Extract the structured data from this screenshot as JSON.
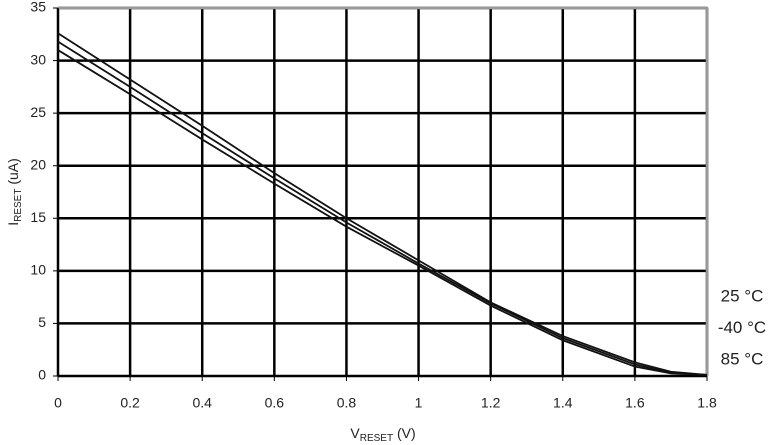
{
  "chart_data": {
    "type": "line",
    "ylabel": [
      "I",
      "RESET",
      " (uA)"
    ],
    "xlabel": [
      "V",
      "RESET",
      " (V)"
    ],
    "x": [
      0,
      0.2,
      0.4,
      0.6,
      0.8,
      1.0,
      1.2,
      1.4,
      1.6,
      1.7,
      1.8
    ],
    "series": [
      {
        "name": "25 °C",
        "color": "#111111",
        "values": [
          32.6,
          28.2,
          23.8,
          19.3,
          15.0,
          11.0,
          7.0,
          3.8,
          1.3,
          0.4,
          0.1
        ]
      },
      {
        "name": "-40 °C",
        "color": "#111111",
        "values": [
          31.8,
          27.5,
          23.1,
          18.8,
          14.6,
          10.7,
          6.9,
          3.6,
          1.1,
          0.3,
          0.1
        ]
      },
      {
        "name": "85 °C",
        "color": "#111111",
        "values": [
          31.0,
          26.8,
          22.5,
          18.3,
          14.2,
          10.5,
          6.7,
          3.4,
          0.9,
          0.25,
          0.1
        ]
      }
    ],
    "xlim": [
      0,
      1.8
    ],
    "xticks": [
      0,
      0.2,
      0.4,
      0.6,
      0.8,
      1,
      1.2,
      1.4,
      1.6,
      1.8
    ],
    "ylim": [
      0,
      35
    ],
    "yticks": [
      0,
      5,
      10,
      15,
      20,
      25,
      30,
      35
    ],
    "grid": true
  }
}
